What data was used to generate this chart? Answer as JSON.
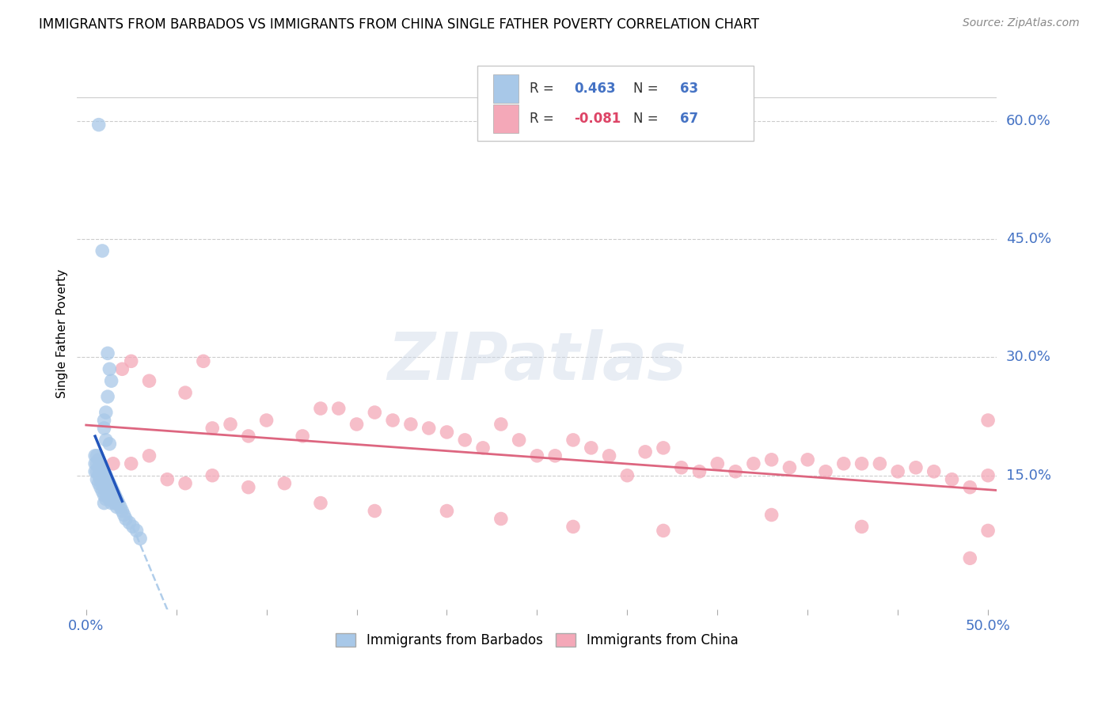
{
  "title": "IMMIGRANTS FROM BARBADOS VS IMMIGRANTS FROM CHINA SINGLE FATHER POVERTY CORRELATION CHART",
  "source": "Source: ZipAtlas.com",
  "ylabel": "Single Father Poverty",
  "ylabel_right_ticks": [
    "60.0%",
    "45.0%",
    "30.0%",
    "15.0%"
  ],
  "ylabel_right_vals": [
    0.6,
    0.45,
    0.3,
    0.15
  ],
  "xlim": [
    0.0,
    0.5
  ],
  "ylim": [
    0.0,
    0.65
  ],
  "barbados_R": 0.463,
  "barbados_N": 63,
  "china_R": -0.081,
  "china_N": 67,
  "barbados_color": "#a8c8e8",
  "china_color": "#f4a8b8",
  "trendline_barbados_color": "#2255bb",
  "trendline_china_color": "#dd6680",
  "watermark": "ZIPatlas",
  "legend_label_barbados": "Immigrants from Barbados",
  "legend_label_china": "Immigrants from China",
  "barbados_x": [
    0.007,
    0.009,
    0.012,
    0.013,
    0.014,
    0.012,
    0.011,
    0.01,
    0.01,
    0.011,
    0.013,
    0.005,
    0.005,
    0.005,
    0.006,
    0.006,
    0.006,
    0.006,
    0.007,
    0.007,
    0.007,
    0.007,
    0.008,
    0.008,
    0.008,
    0.008,
    0.009,
    0.009,
    0.009,
    0.009,
    0.01,
    0.01,
    0.01,
    0.01,
    0.01,
    0.011,
    0.011,
    0.011,
    0.011,
    0.012,
    0.012,
    0.012,
    0.013,
    0.013,
    0.013,
    0.014,
    0.014,
    0.014,
    0.015,
    0.015,
    0.016,
    0.016,
    0.017,
    0.017,
    0.018,
    0.019,
    0.02,
    0.021,
    0.022,
    0.024,
    0.026,
    0.028,
    0.03
  ],
  "barbados_y": [
    0.595,
    0.435,
    0.305,
    0.285,
    0.27,
    0.25,
    0.23,
    0.22,
    0.21,
    0.195,
    0.19,
    0.175,
    0.165,
    0.155,
    0.175,
    0.165,
    0.155,
    0.145,
    0.17,
    0.16,
    0.15,
    0.14,
    0.165,
    0.155,
    0.145,
    0.135,
    0.16,
    0.15,
    0.14,
    0.13,
    0.155,
    0.145,
    0.135,
    0.125,
    0.115,
    0.15,
    0.14,
    0.13,
    0.12,
    0.145,
    0.135,
    0.125,
    0.14,
    0.13,
    0.12,
    0.135,
    0.125,
    0.115,
    0.13,
    0.12,
    0.125,
    0.115,
    0.12,
    0.11,
    0.115,
    0.11,
    0.105,
    0.1,
    0.095,
    0.09,
    0.085,
    0.08,
    0.07
  ],
  "china_x": [
    0.02,
    0.025,
    0.035,
    0.055,
    0.065,
    0.07,
    0.08,
    0.09,
    0.1,
    0.12,
    0.13,
    0.14,
    0.15,
    0.16,
    0.17,
    0.18,
    0.19,
    0.2,
    0.21,
    0.22,
    0.23,
    0.24,
    0.25,
    0.26,
    0.27,
    0.28,
    0.29,
    0.3,
    0.31,
    0.32,
    0.33,
    0.34,
    0.35,
    0.36,
    0.37,
    0.38,
    0.39,
    0.4,
    0.41,
    0.42,
    0.43,
    0.44,
    0.45,
    0.46,
    0.47,
    0.48,
    0.49,
    0.5,
    0.015,
    0.025,
    0.035,
    0.045,
    0.055,
    0.07,
    0.09,
    0.11,
    0.13,
    0.16,
    0.2,
    0.23,
    0.27,
    0.32,
    0.38,
    0.43,
    0.49,
    0.5,
    0.5
  ],
  "china_y": [
    0.285,
    0.295,
    0.27,
    0.255,
    0.295,
    0.21,
    0.215,
    0.2,
    0.22,
    0.2,
    0.235,
    0.235,
    0.215,
    0.23,
    0.22,
    0.215,
    0.21,
    0.205,
    0.195,
    0.185,
    0.215,
    0.195,
    0.175,
    0.175,
    0.195,
    0.185,
    0.175,
    0.15,
    0.18,
    0.185,
    0.16,
    0.155,
    0.165,
    0.155,
    0.165,
    0.17,
    0.16,
    0.17,
    0.155,
    0.165,
    0.165,
    0.165,
    0.155,
    0.16,
    0.155,
    0.145,
    0.135,
    0.22,
    0.165,
    0.165,
    0.175,
    0.145,
    0.14,
    0.15,
    0.135,
    0.14,
    0.115,
    0.105,
    0.105,
    0.095,
    0.085,
    0.08,
    0.1,
    0.085,
    0.045,
    0.08,
    0.15
  ]
}
